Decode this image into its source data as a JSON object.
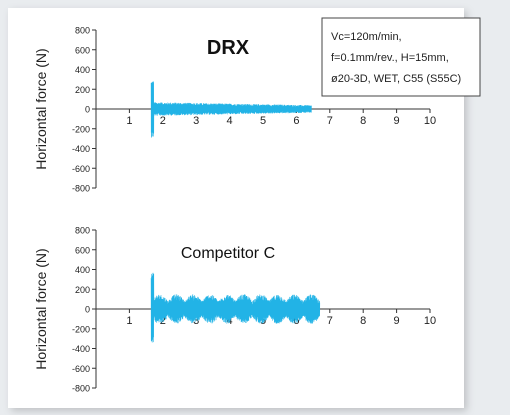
{
  "figure": {
    "background": "#ffffff",
    "outer_background": "#e9ecef",
    "signal_color": "#22b3e6",
    "axis_color": "#333333"
  },
  "chart_data": [
    {
      "type": "line",
      "title": "DRX",
      "ylabel": "Horizontal force (N)",
      "xlabel": "",
      "xlim": [
        0,
        10
      ],
      "ylim": [
        -800,
        800
      ],
      "x_ticks": [
        1,
        2,
        3,
        4,
        5,
        6,
        7,
        8,
        9,
        10
      ],
      "y_ticks": [
        800,
        600,
        400,
        200,
        0,
        -200,
        -400,
        -600,
        -800
      ],
      "y_tick_labels": [
        "800",
        "600",
        "400",
        "200",
        "0",
        "-200",
        "-400",
        "-600",
        "-800"
      ],
      "grid": false,
      "signal": {
        "start": 1.65,
        "end": 6.45,
        "peak_max": 290,
        "peak_min": -290,
        "steady_amplitude": 70,
        "envelope_end_fraction": 0.55,
        "modulation_periods": 0
      }
    },
    {
      "type": "line",
      "title": "Competitor C",
      "ylabel": "Horizontal force (N)",
      "xlabel": "",
      "xlim": [
        0,
        10
      ],
      "ylim": [
        -800,
        800
      ],
      "x_ticks": [
        1,
        2,
        3,
        4,
        5,
        6,
        7,
        8,
        9,
        10
      ],
      "y_ticks": [
        800,
        600,
        400,
        200,
        0,
        -200,
        -400,
        -600,
        -800
      ],
      "y_tick_labels": [
        "800",
        "600",
        "400",
        "200",
        "0",
        "-200",
        "-400",
        "-600",
        "-800"
      ],
      "grid": false,
      "signal": {
        "start": 1.65,
        "end": 6.7,
        "peak_max": 380,
        "peak_min": -340,
        "steady_amplitude": 150,
        "envelope_end_fraction": 1.0,
        "modulation_periods": 10
      }
    }
  ],
  "conditions": {
    "lines": [
      "Vc=120m/min,",
      "f=0.1mm/rev., H=15mm,",
      "ø20-3D, WET, C55 (S55C)"
    ]
  }
}
